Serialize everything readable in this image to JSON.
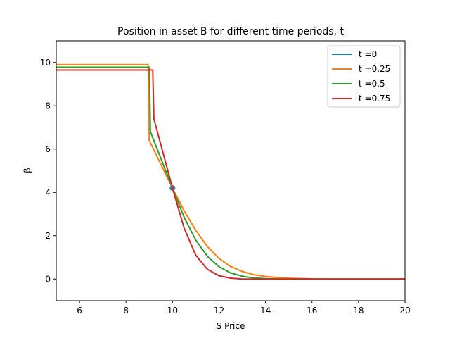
{
  "chart_data": {
    "type": "line",
    "title": "Position in asset B for different time periods, t",
    "xlabel": "S Price",
    "ylabel": "β",
    "xlim": [
      5,
      20
    ],
    "ylim": [
      -1,
      11
    ],
    "xticks": [
      6,
      8,
      10,
      12,
      14,
      16,
      18,
      20
    ],
    "yticks": [
      0,
      2,
      4,
      6,
      8,
      10
    ],
    "legend_position": "top-right",
    "series": [
      {
        "name": "t =0",
        "color": "#1f77b4",
        "marker": "point",
        "x": [
          10
        ],
        "y": [
          4.2
        ]
      },
      {
        "name": "t =0.25",
        "color": "#ff7f0e",
        "x": [
          5,
          8.95,
          9.0,
          10.0,
          10.5,
          11.0,
          11.5,
          12.0,
          12.5,
          13.0,
          13.5,
          14.0,
          14.5,
          15.0,
          16.0,
          17.0,
          18.0,
          20.0
        ],
        "y": [
          9.9,
          9.9,
          6.4,
          4.2,
          3.15,
          2.25,
          1.5,
          0.95,
          0.58,
          0.35,
          0.2,
          0.12,
          0.07,
          0.04,
          0.01,
          0.0,
          0.0,
          0.0
        ]
      },
      {
        "name": "t =0.5",
        "color": "#2ca02c",
        "x": [
          5,
          9.0,
          9.05,
          10.0,
          10.5,
          11.0,
          11.5,
          12.0,
          12.5,
          13.0,
          13.5,
          14.0,
          15.0,
          16.0,
          18.0,
          20.0
        ],
        "y": [
          9.78,
          9.78,
          6.8,
          4.2,
          2.85,
          1.8,
          1.05,
          0.57,
          0.28,
          0.13,
          0.05,
          0.02,
          0.0,
          0.0,
          0.0,
          0.0
        ]
      },
      {
        "name": "t =0.75",
        "color": "#d62728",
        "x": [
          5,
          9.15,
          9.2,
          10.0,
          10.5,
          11.0,
          11.5,
          12.0,
          12.5,
          13.0,
          13.5,
          14.0,
          15.0,
          20.0
        ],
        "y": [
          9.65,
          9.65,
          7.4,
          4.2,
          2.35,
          1.1,
          0.45,
          0.15,
          0.04,
          0.0,
          0.0,
          0.0,
          0.0,
          0.0
        ]
      }
    ]
  }
}
